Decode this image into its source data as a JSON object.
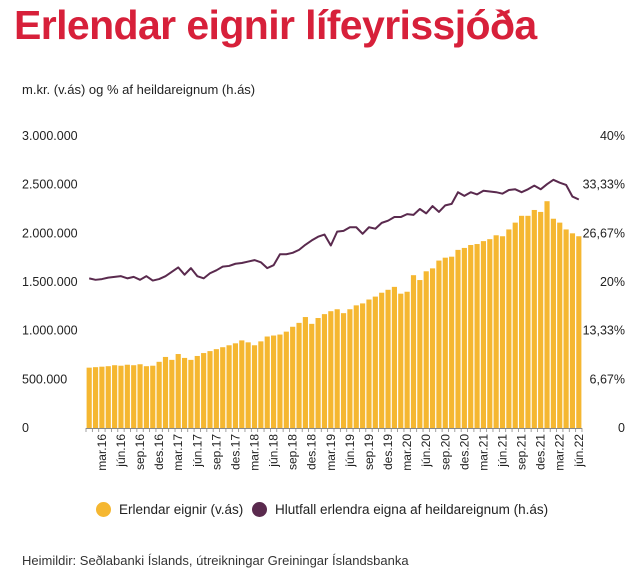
{
  "title": "Erlendar eignir lífeyrissjóða",
  "subtitle": "m.kr. (v.ás) og % af heildareignum (h.ás)",
  "source": "Heimildir: Seðlabanki Íslands, útreikningar Greiningar Íslandsbanka",
  "legend": [
    {
      "label": "Erlendar eignir (v.ás)",
      "color": "#f5b731"
    },
    {
      "label": "Hlutfall erlendra eigna af heildareignum (h.ás)",
      "color": "#5a2a4e"
    }
  ],
  "chart_data": {
    "type": "bar",
    "grid": false,
    "left_axis": {
      "ticks": [
        0,
        500000,
        1000000,
        1500000,
        2000000,
        2500000,
        3000000
      ],
      "tick_labels": [
        "0",
        "500.000",
        "1.000.000",
        "1.500.000",
        "2.000.000",
        "2.500.000",
        "3.000.000"
      ],
      "ylim": [
        0,
        3000000
      ]
    },
    "right_axis": {
      "ticks": [
        0,
        6.67,
        13.33,
        20,
        26.67,
        33.33,
        40
      ],
      "tick_labels": [
        "0",
        "6,67%",
        "13,33%",
        "20%",
        "26,67%",
        "33,33%",
        "40%"
      ],
      "ylim": [
        0,
        40
      ]
    },
    "x_tick_labels": [
      "mar.16",
      "jún.16",
      "sep.16",
      "des.16",
      "mar.17",
      "jún.17",
      "sep.17",
      "des.17",
      "mar.18",
      "jún.18",
      "sep.18",
      "des.18",
      "mar.19",
      "jún.19",
      "sep.19",
      "des.19",
      "mar.20",
      "jún.20",
      "sep.20",
      "des.20",
      "mar.21",
      "jún.21",
      "sep.21",
      "des.21",
      "mar.22",
      "jún.22"
    ],
    "categories": [
      "jan.16",
      "feb.16",
      "mar.16",
      "apr.16",
      "maí.16",
      "jún.16",
      "júl.16",
      "ágú.16",
      "sep.16",
      "okt.16",
      "nóv.16",
      "des.16",
      "jan.17",
      "feb.17",
      "mar.17",
      "apr.17",
      "maí.17",
      "jún.17",
      "júl.17",
      "ágú.17",
      "sep.17",
      "okt.17",
      "nóv.17",
      "des.17",
      "jan.18",
      "feb.18",
      "mar.18",
      "apr.18",
      "maí.18",
      "jún.18",
      "júl.18",
      "ágú.18",
      "sep.18",
      "okt.18",
      "nóv.18",
      "des.18",
      "jan.19",
      "feb.19",
      "mar.19",
      "apr.19",
      "maí.19",
      "jún.19",
      "júl.19",
      "ágú.19",
      "sep.19",
      "okt.19",
      "nóv.19",
      "des.19",
      "jan.20",
      "feb.20",
      "mar.20",
      "apr.20",
      "maí.20",
      "jún.20",
      "júl.20",
      "ágú.20",
      "sep.20",
      "okt.20",
      "nóv.20",
      "des.20",
      "jan.21",
      "feb.21",
      "mar.21",
      "apr.21",
      "maí.21",
      "jún.21",
      "júl.21",
      "ágú.21",
      "sep.21",
      "okt.21",
      "nóv.21",
      "des.21",
      "jan.22",
      "feb.22",
      "mar.22",
      "apr.22",
      "maí.22",
      "jún.22"
    ],
    "series": [
      {
        "name": "Erlendar eignir (v.ás)",
        "type": "bar",
        "axis": "left",
        "color": "#f5b731",
        "values": [
          620000,
          625000,
          630000,
          635000,
          645000,
          640000,
          650000,
          645000,
          655000,
          635000,
          640000,
          680000,
          730000,
          700000,
          760000,
          720000,
          700000,
          740000,
          770000,
          790000,
          810000,
          830000,
          850000,
          870000,
          900000,
          880000,
          850000,
          890000,
          940000,
          950000,
          960000,
          990000,
          1040000,
          1080000,
          1140000,
          1070000,
          1130000,
          1170000,
          1200000,
          1220000,
          1180000,
          1220000,
          1260000,
          1280000,
          1320000,
          1350000,
          1390000,
          1420000,
          1450000,
          1380000,
          1400000,
          1570000,
          1520000,
          1610000,
          1640000,
          1720000,
          1750000,
          1760000,
          1830000,
          1850000,
          1880000,
          1890000,
          1920000,
          1940000,
          1980000,
          1970000,
          2040000,
          2110000,
          2180000,
          2180000,
          2240000,
          2220000,
          2330000,
          2150000,
          2110000,
          2040000,
          2000000,
          1970000
        ]
      },
      {
        "name": "Hlutfall erlendra eigna af heildareignum (h.ás)",
        "type": "line",
        "axis": "right",
        "color": "#5a2a4e",
        "values": [
          20.5,
          20.3,
          20.4,
          20.6,
          20.7,
          20.8,
          20.5,
          20.7,
          20.3,
          20.8,
          20.2,
          20.4,
          20.8,
          21.4,
          22.0,
          21.0,
          21.9,
          20.8,
          20.5,
          21.2,
          21.6,
          22.1,
          22.2,
          22.5,
          22.6,
          22.8,
          23.0,
          22.7,
          21.9,
          22.3,
          23.8,
          23.8,
          24.0,
          24.4,
          25.1,
          25.7,
          26.2,
          26.5,
          25.0,
          26.9,
          27.0,
          27.5,
          27.5,
          26.6,
          27.5,
          27.3,
          28.1,
          28.4,
          28.9,
          28.9,
          29.3,
          29.2,
          30.0,
          29.4,
          30.4,
          29.6,
          30.5,
          30.7,
          32.3,
          31.8,
          32.3,
          32.0,
          32.5,
          32.4,
          32.3,
          32.1,
          32.6,
          32.7,
          32.3,
          32.7,
          33.2,
          32.7,
          33.4,
          34.0,
          33.6,
          33.3,
          31.7,
          31.3
        ]
      }
    ]
  }
}
